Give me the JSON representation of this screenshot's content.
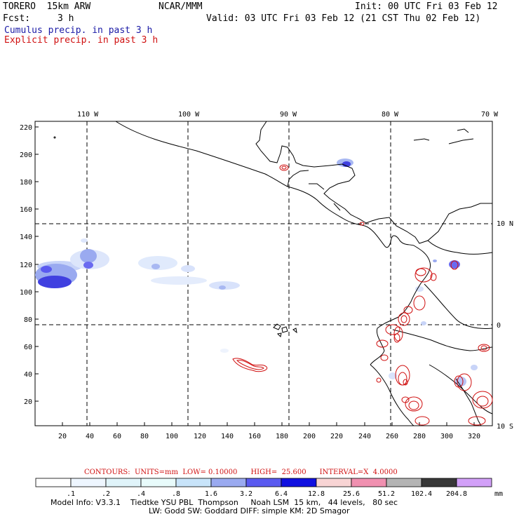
{
  "header": {
    "model": "TORERO  15km ARW",
    "center": "NCAR/MMM",
    "init": "Init: 00 UTC Fri 03 Feb 12",
    "fcst_label": "Fcst:",
    "fcst_value": "3 h",
    "valid": "Valid: 03 UTC Fri 03 Feb 12 (21 CST Thu 02 Feb 12)",
    "legend_cumulus": "Cumulus precip. in past 3 h",
    "legend_explicit": "Explicit precip. in past 3 h"
  },
  "colors": {
    "cumulus": "#1a1aa6",
    "explicit": "#d01010",
    "coast": "#000000"
  },
  "map": {
    "lon_labels": [
      "110 W",
      "100 W",
      "90 W",
      "80 W",
      "70 W"
    ],
    "lat_labels": [
      "10 N",
      "0",
      "10 S"
    ],
    "y_ticks": [
      "220",
      "200",
      "180",
      "160",
      "140",
      "120",
      "100",
      "80",
      "60",
      "40",
      "20"
    ],
    "x_ticks": [
      "20",
      "40",
      "60",
      "80",
      "100",
      "120",
      "140",
      "160",
      "180",
      "200",
      "220",
      "240",
      "260",
      "280",
      "300",
      "320"
    ]
  },
  "contour_info": "CONTOURS:  UNITS=mm  LOW= 0.10000      HIGH=  25.600      INTERVAL=X  4.0000",
  "colorbar": {
    "labels": [
      ".1",
      ".2",
      ".4",
      ".8",
      "1.6",
      "3.2",
      "6.4",
      "12.8",
      "25.6",
      "51.2",
      "102.4",
      "204.8"
    ],
    "unit": "mm",
    "colors": [
      "#ffffff",
      "#eef6ff",
      "#e0f4fa",
      "#e8fbfb",
      "#c8e4fa",
      "#9aaaf0",
      "#5a5af0",
      "#1010e0",
      "#f8d4d4",
      "#f090b0",
      "#b4b4b4",
      "#383838",
      "#d2a0f8"
    ]
  },
  "model_info": {
    "line1": "Model Info: V3.3.1    Tiedtke YSU PBL  Thompson     Noah LSM  15 km,   44 levels,   80 sec",
    "line2": "LW: Godd SW: Goddard DIFF: simple KM: 2D Smagor"
  }
}
